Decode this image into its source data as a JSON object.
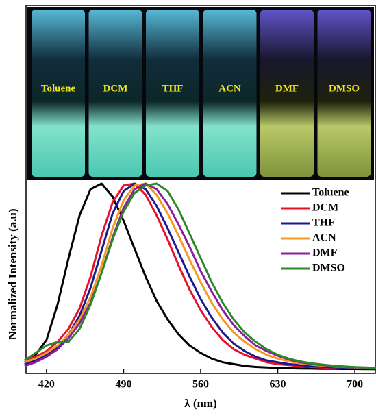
{
  "chart_data": {
    "type": "line",
    "xlabel": "λ (nm)",
    "ylabel": "Normalized Intensity (a.u)",
    "x": [
      400,
      410,
      420,
      430,
      440,
      450,
      460,
      470,
      480,
      490,
      500,
      510,
      520,
      530,
      540,
      550,
      560,
      570,
      580,
      590,
      600,
      610,
      620,
      630,
      640,
      650,
      660,
      670,
      680,
      690,
      700,
      710,
      720
    ],
    "xlim": [
      402,
      718
    ],
    "xticks": [
      420,
      490,
      560,
      630,
      700
    ],
    "ylim": [
      -0.02,
      1.0
    ],
    "legend": "upper right",
    "series": [
      {
        "name": "Toluene",
        "color": "#000000",
        "values": [
          0.04,
          0.08,
          0.16,
          0.35,
          0.6,
          0.83,
          0.97,
          1.0,
          0.93,
          0.8,
          0.65,
          0.5,
          0.37,
          0.27,
          0.19,
          0.13,
          0.09,
          0.06,
          0.04,
          0.03,
          0.02,
          0.015,
          0.012,
          0.01,
          0.008,
          0.007,
          0.006,
          0.005,
          0.005,
          0.004,
          0.004,
          0.003,
          0.003
        ]
      },
      {
        "name": "DCM",
        "color": "#e8102a",
        "values": [
          0.05,
          0.07,
          0.1,
          0.15,
          0.22,
          0.33,
          0.5,
          0.72,
          0.9,
          0.99,
          1.0,
          0.94,
          0.83,
          0.7,
          0.56,
          0.43,
          0.32,
          0.23,
          0.16,
          0.11,
          0.08,
          0.06,
          0.04,
          0.03,
          0.025,
          0.02,
          0.015,
          0.012,
          0.01,
          0.01,
          0.008,
          0.007,
          0.006
        ]
      },
      {
        "name": "THF",
        "color": "#1a1a8c",
        "values": [
          0.03,
          0.05,
          0.08,
          0.12,
          0.19,
          0.29,
          0.44,
          0.64,
          0.84,
          0.96,
          1.0,
          0.97,
          0.88,
          0.76,
          0.63,
          0.5,
          0.38,
          0.28,
          0.2,
          0.14,
          0.1,
          0.07,
          0.05,
          0.04,
          0.03,
          0.025,
          0.02,
          0.016,
          0.013,
          0.011,
          0.009,
          0.008,
          0.007
        ]
      },
      {
        "name": "ACN",
        "color": "#f59a1c",
        "values": [
          0.04,
          0.06,
          0.09,
          0.13,
          0.19,
          0.27,
          0.39,
          0.56,
          0.76,
          0.91,
          0.99,
          1.0,
          0.94,
          0.84,
          0.72,
          0.59,
          0.47,
          0.36,
          0.27,
          0.2,
          0.15,
          0.11,
          0.08,
          0.06,
          0.045,
          0.035,
          0.028,
          0.022,
          0.018,
          0.015,
          0.012,
          0.01,
          0.009
        ]
      },
      {
        "name": "DMF",
        "color": "#8b1fa0",
        "values": [
          0.02,
          0.04,
          0.07,
          0.11,
          0.17,
          0.25,
          0.36,
          0.52,
          0.71,
          0.87,
          0.97,
          1.0,
          0.97,
          0.89,
          0.78,
          0.66,
          0.53,
          0.42,
          0.32,
          0.24,
          0.18,
          0.13,
          0.1,
          0.075,
          0.055,
          0.04,
          0.032,
          0.025,
          0.02,
          0.016,
          0.013,
          0.011,
          0.009
        ]
      },
      {
        "name": "DMSO",
        "color": "#2a8a2a",
        "values": [
          0.05,
          0.09,
          0.13,
          0.15,
          0.15,
          0.22,
          0.35,
          0.52,
          0.7,
          0.85,
          0.95,
          0.99,
          1.0,
          0.96,
          0.86,
          0.73,
          0.6,
          0.47,
          0.36,
          0.27,
          0.2,
          0.15,
          0.11,
          0.08,
          0.06,
          0.045,
          0.035,
          0.028,
          0.022,
          0.018,
          0.014,
          0.012,
          0.01
        ]
      }
    ]
  },
  "inset_labels": [
    "Toluene",
    "DCM",
    "THF",
    "ACN",
    "DMF",
    "DMSO"
  ]
}
